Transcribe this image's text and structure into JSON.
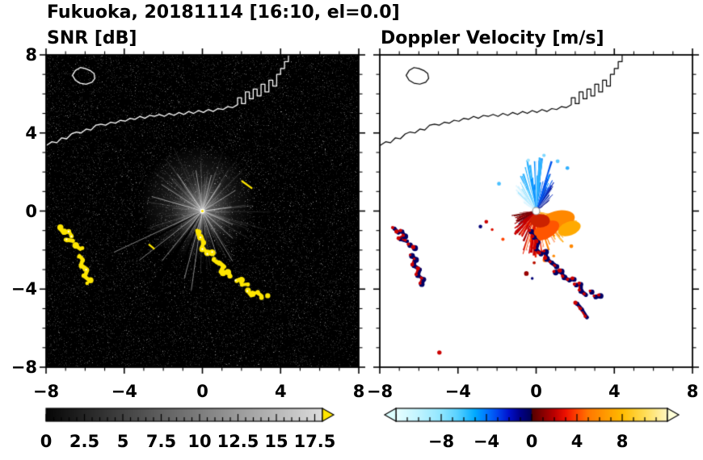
{
  "title": "Fukuoka, 20181114 [16:10, el=0.0]",
  "panels": {
    "snr": {
      "title": "SNR [dB]"
    },
    "doppler": {
      "title": "Doppler Velocity [m/s]"
    }
  },
  "axes": {
    "range": [
      -8,
      8
    ],
    "major_ticks": [
      -8,
      -4,
      0,
      4,
      8
    ],
    "tick_labels": [
      "−8",
      "−4",
      "0",
      "4",
      "8"
    ],
    "minor_step": 1
  },
  "colorbars": {
    "snr": {
      "range": [
        0,
        18
      ],
      "label_values": [
        0,
        2.5,
        5,
        7.5,
        10,
        12.5,
        15,
        17.5
      ],
      "labels": [
        "0",
        "2.5",
        "5",
        "7.5",
        "10",
        "12.5",
        "15",
        "17.5"
      ],
      "minor_step": 0.5,
      "major_step": 2.5,
      "gradient": [
        [
          0,
          "#060606"
        ],
        [
          18,
          "#dcdcdc"
        ]
      ],
      "over_arrow_color": "#ffe600"
    },
    "doppler": {
      "range": [
        -12,
        12
      ],
      "label_values": [
        -8,
        -4,
        0,
        4,
        8
      ],
      "labels": [
        "−8",
        "−4",
        "0",
        "4",
        "8"
      ],
      "minor_step": 1,
      "major_step": 4,
      "stops": [
        [
          -12,
          "#e8ffff"
        ],
        [
          -10,
          "#c0f4ff"
        ],
        [
          -8,
          "#8fe6ff"
        ],
        [
          -6.5,
          "#55d0ff"
        ],
        [
          -5,
          "#00aaff"
        ],
        [
          -4,
          "#0077ff"
        ],
        [
          -3,
          "#0044ee"
        ],
        [
          -2,
          "#0011cc"
        ],
        [
          -1,
          "#000088"
        ],
        [
          -0.05,
          "#000055"
        ],
        [
          0.05,
          "#550000"
        ],
        [
          1,
          "#880000"
        ],
        [
          2,
          "#bb0000"
        ],
        [
          3,
          "#ee1100"
        ],
        [
          4,
          "#ff4400"
        ],
        [
          5,
          "#ff7700"
        ],
        [
          6.5,
          "#ff9900"
        ],
        [
          8,
          "#ffbb00"
        ],
        [
          10,
          "#ffdd55"
        ],
        [
          12,
          "#fff7c0"
        ]
      ],
      "under_arrow_color": "#dcffff",
      "over_arrow_color": "#ffffd8"
    }
  },
  "chart_data": {
    "type": "heatmap",
    "subtype": "radar_ppi_pair",
    "site": "Fukuoka",
    "date": "20181114",
    "time": "16:10",
    "elevation_deg": 0.0,
    "x_range": [
      -8,
      8
    ],
    "y_range": [
      -8,
      8
    ],
    "snr_scale_db": [
      0,
      17.5
    ],
    "velocity_scale_ms": [
      -8,
      8
    ],
    "coastline": {
      "main": [
        [
          -8,
          3.35
        ],
        [
          -7.7,
          3.55
        ],
        [
          -7.45,
          3.5
        ],
        [
          -7.2,
          3.75
        ],
        [
          -6.95,
          3.7
        ],
        [
          -6.7,
          3.95
        ],
        [
          -6.45,
          4.05
        ],
        [
          -6.2,
          4.0
        ],
        [
          -5.95,
          4.2
        ],
        [
          -5.7,
          4.15
        ],
        [
          -5.45,
          4.4
        ],
        [
          -5.2,
          4.45
        ],
        [
          -4.95,
          4.4
        ],
        [
          -4.7,
          4.55
        ],
        [
          -4.45,
          4.5
        ],
        [
          -4.2,
          4.65
        ],
        [
          -3.95,
          4.6
        ],
        [
          -3.7,
          4.75
        ],
        [
          -3.45,
          4.7
        ],
        [
          -3.2,
          4.85
        ],
        [
          -2.95,
          4.75
        ],
        [
          -2.7,
          4.9
        ],
        [
          -2.45,
          4.85
        ],
        [
          -2.2,
          4.95
        ],
        [
          -1.95,
          4.85
        ],
        [
          -1.7,
          5.0
        ],
        [
          -1.45,
          4.9
        ],
        [
          -1.2,
          5.05
        ],
        [
          -0.95,
          4.95
        ],
        [
          -0.7,
          5.1
        ],
        [
          -0.45,
          5.0
        ],
        [
          -0.2,
          5.15
        ],
        [
          0.05,
          5.05
        ],
        [
          0.3,
          5.2
        ],
        [
          0.55,
          5.1
        ],
        [
          0.8,
          5.25
        ],
        [
          1.05,
          5.2
        ],
        [
          1.3,
          5.35
        ],
        [
          1.55,
          5.3
        ],
        [
          1.8,
          5.45
        ],
        [
          1.8,
          5.8
        ],
        [
          2.0,
          5.8
        ],
        [
          2.0,
          5.5
        ],
        [
          2.2,
          5.5
        ],
        [
          2.2,
          6.1
        ],
        [
          2.4,
          6.1
        ],
        [
          2.4,
          5.75
        ],
        [
          2.6,
          5.75
        ],
        [
          2.6,
          6.25
        ],
        [
          2.8,
          6.25
        ],
        [
          2.8,
          5.9
        ],
        [
          3.0,
          5.9
        ],
        [
          3.0,
          6.5
        ],
        [
          3.2,
          6.5
        ],
        [
          3.2,
          6.1
        ],
        [
          3.4,
          6.1
        ],
        [
          3.4,
          6.7
        ],
        [
          3.6,
          6.7
        ],
        [
          3.6,
          6.4
        ],
        [
          3.8,
          6.4
        ],
        [
          3.8,
          7.0
        ],
        [
          4.0,
          7.0
        ],
        [
          4.0,
          7.3
        ],
        [
          4.2,
          7.3
        ],
        [
          4.2,
          7.65
        ],
        [
          4.4,
          7.65
        ],
        [
          4.4,
          8.0
        ]
      ],
      "island": [
        [
          -6.65,
          6.95
        ],
        [
          -6.5,
          7.2
        ],
        [
          -6.25,
          7.35
        ],
        [
          -6.0,
          7.3
        ],
        [
          -5.75,
          7.2
        ],
        [
          -5.55,
          7.05
        ],
        [
          -5.5,
          6.8
        ],
        [
          -5.65,
          6.6
        ],
        [
          -5.95,
          6.5
        ],
        [
          -6.25,
          6.55
        ],
        [
          -6.5,
          6.7
        ],
        [
          -6.65,
          6.95
        ]
      ]
    },
    "snr_features": {
      "center": [
        0,
        0
      ],
      "streak_count": 170,
      "bright_rays": [
        [
          205,
          5.0
        ],
        [
          218,
          4.1
        ],
        [
          231,
          3.3
        ],
        [
          255,
          3.6
        ],
        [
          262,
          4.1
        ],
        [
          271,
          2.7
        ],
        [
          288,
          2.3
        ],
        [
          301,
          3.0
        ],
        [
          318,
          2.1
        ],
        [
          336,
          1.7
        ],
        [
          8,
          1.5
        ],
        [
          32,
          2.0
        ],
        [
          57,
          1.7
        ],
        [
          76,
          1.9
        ],
        [
          99,
          2.1
        ],
        [
          124,
          2.3
        ],
        [
          147,
          2.5
        ],
        [
          164,
          2.7
        ]
      ],
      "dark_wedges": [
        [
          237,
          2.2,
          4.6
        ],
        [
          250,
          1.5,
          3.4
        ],
        [
          272,
          1.8,
          4.2
        ],
        [
          209,
          1.3,
          3.0
        ],
        [
          290,
          1.2,
          2.6
        ]
      ],
      "yellow_dashes": [
        [
          [
            -2.75,
            -1.7
          ],
          [
            -2.45,
            -1.95
          ]
        ],
        [
          [
            2.0,
            1.55
          ],
          [
            2.55,
            1.15
          ]
        ]
      ],
      "blob_color": "#ffe600",
      "chains": {
        "A": [
          [
            -0.25,
            -1.05
          ],
          [
            -0.1,
            -1.35
          ],
          [
            0.1,
            -1.6
          ],
          [
            0.0,
            -1.95
          ],
          [
            0.25,
            -2.2
          ],
          [
            0.5,
            -2.1
          ],
          [
            0.55,
            -2.45
          ],
          [
            0.8,
            -2.65
          ],
          [
            1.05,
            -2.85
          ],
          [
            1.0,
            -3.15
          ],
          [
            1.3,
            -3.1
          ],
          [
            1.45,
            -3.4
          ],
          [
            1.7,
            -3.55
          ],
          [
            1.95,
            -3.5
          ],
          [
            2.05,
            -3.8
          ],
          [
            2.3,
            -3.75
          ],
          [
            2.3,
            -4.1
          ],
          [
            2.55,
            -4.3
          ],
          [
            2.85,
            -4.15
          ],
          [
            3.05,
            -4.4
          ],
          [
            3.3,
            -4.35
          ]
        ],
        "B1": [
          [
            -7.25,
            -0.9
          ],
          [
            -7.05,
            -1.1
          ],
          [
            -6.85,
            -1.05
          ],
          [
            -6.7,
            -1.3
          ],
          [
            -6.95,
            -1.45
          ],
          [
            -6.6,
            -1.55
          ],
          [
            -6.45,
            -1.75
          ],
          [
            -6.2,
            -1.9
          ]
        ],
        "B2": [
          [
            -6.35,
            -2.3
          ],
          [
            -6.15,
            -2.5
          ],
          [
            -6.25,
            -2.8
          ],
          [
            -5.95,
            -3.0
          ],
          [
            -6.05,
            -3.3
          ],
          [
            -5.75,
            -3.5
          ],
          [
            -5.85,
            -3.75
          ]
        ]
      }
    },
    "doppler_features": {
      "center": [
        0,
        0
      ],
      "fan": {
        "upper": {
          "a0": 35,
          "a1": 150,
          "plume": [
            68,
            108
          ],
          "max_len": 2.75,
          "colors": [
            "#d8f4ff",
            "#a8e8ff",
            "#6fd4ff",
            "#2fb4ff",
            "#008cff",
            "#0055ee",
            "#0022bb",
            "#000f88"
          ]
        },
        "lower": {
          "a0": 185,
          "a1": 348,
          "max_len": 2.4,
          "colors": [
            "#7a0000",
            "#a40000",
            "#cc0000",
            "#ee2200",
            "#ff5500",
            "#ff8000",
            "#ffa500",
            "#ffc04d"
          ]
        },
        "navy": {
          "a0": 192,
          "a1": 238,
          "max_len": 1.15,
          "colors": [
            "#000066",
            "#000044",
            "#151515"
          ]
        }
      },
      "orange_blobs": [
        [
          1.05,
          -0.5,
          0.95,
          0.5,
          -15,
          "#ff8800"
        ],
        [
          0.5,
          -1.0,
          0.75,
          0.4,
          -30,
          "#ff5500"
        ],
        [
          1.7,
          -0.9,
          0.6,
          0.35,
          -20,
          "#ffaa00"
        ],
        [
          0.2,
          -0.5,
          0.5,
          0.35,
          0,
          "#cc2200"
        ]
      ],
      "specks": [
        [
          -2.55,
          -0.55,
          "#cc0000"
        ],
        [
          -2.85,
          -0.8,
          "#000077"
        ],
        [
          -2.25,
          -0.95,
          "#dd1100"
        ],
        [
          -1.7,
          -1.45,
          "#ff4400"
        ],
        [
          0.1,
          -2.1,
          "#dd2200"
        ],
        [
          0.45,
          -2.5,
          "#ff6600"
        ],
        [
          -0.1,
          -2.65,
          "#bb1100"
        ],
        [
          0.9,
          -2.3,
          "#ff8800"
        ],
        [
          1.8,
          -1.8,
          "#ff8800"
        ],
        [
          -0.5,
          -3.2,
          "#990000"
        ],
        [
          -0.2,
          -3.45,
          "#000077"
        ],
        [
          -4.95,
          -7.25,
          "#cc0000"
        ],
        [
          -1.9,
          1.4,
          "#49c0ff"
        ],
        [
          0.4,
          2.85,
          "#7fd8ff"
        ],
        [
          -0.4,
          2.6,
          "#9fe4ff"
        ],
        [
          1.1,
          2.55,
          "#5bc8ff"
        ],
        [
          1.6,
          2.2,
          "#2fb0ff"
        ]
      ],
      "extra_chain": [
        [
          2.1,
          -4.75
        ],
        [
          2.35,
          -5.05
        ],
        [
          2.6,
          -5.45
        ]
      ],
      "chain_colors": {
        "navy": "#000066",
        "red": "#cc0000"
      }
    }
  }
}
